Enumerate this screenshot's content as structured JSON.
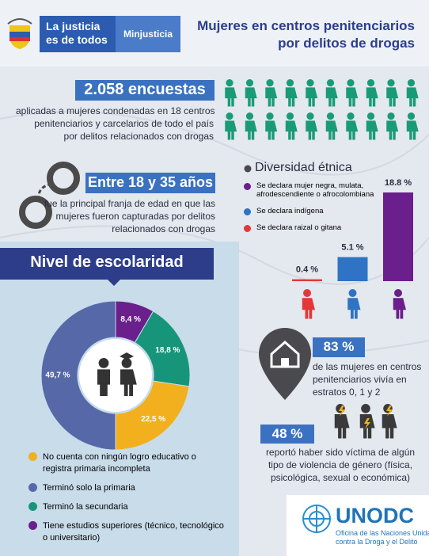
{
  "header": {
    "logo_line1": "La justicia",
    "logo_line2": "es de todos",
    "ministry": "Minjusticia",
    "title_line1": "Mujeres en centros penitenciarios",
    "title_line2": "por delitos de drogas"
  },
  "survey": {
    "headline": "2.058 encuestas",
    "text_lines": [
      "aplicadas a mujeres condenadas en 18 centros",
      "penitenciarios y carcelarios de todo el país",
      "por delitos relacionados con drogas"
    ]
  },
  "age": {
    "headline": "Entre 18 y 35 años",
    "text_lines": [
      "fue la principal franja de edad en que las",
      "mujeres fueron capturadas por delitos",
      "relacionados con drogas"
    ]
  },
  "chart_data": [
    {
      "type": "bar",
      "title": "Diversidad étnica",
      "categories": [
        "Se declara mujer negra, mulata, afrodescendiente o afrocolombiana",
        "Se declara indígena",
        "Se declara raizal o gitana"
      ],
      "values": [
        18.8,
        5.1,
        0.4
      ],
      "value_labels": [
        "18.8 %",
        "5.1 %",
        "0.4 %"
      ],
      "colors": [
        "#6a1f8c",
        "#2f73c4",
        "#e2383a"
      ]
    },
    {
      "type": "donut",
      "title": "Nivel de escolaridad",
      "categories": [
        "No cuenta con ningún logro educativo o registra primaria incompleta",
        "Terminó solo la primaria",
        "Terminó la secundaria",
        "Tiene estudios superiores (técnico, tecnológico o universitario)"
      ],
      "values": [
        22.5,
        49.7,
        18.8,
        8.4
      ],
      "value_labels": [
        "22,5 %",
        "49,7 %",
        "18,8 %",
        "8,4 %"
      ],
      "colors": [
        "#f2b01e",
        "#5668a8",
        "#17957a",
        "#6a1f8c"
      ]
    }
  ],
  "housing": {
    "headline": "83 %",
    "text_lines": [
      "de las mujeres en centros",
      "penitenciarios vivía en",
      "estratos 0, 1 y 2"
    ]
  },
  "violence": {
    "headline": "48 %",
    "text_lines": [
      "reportó haber sido víctima de algún",
      "tipo de violencia de género (física,",
      "psicológica, sexual o económica)"
    ]
  },
  "footer": {
    "brand": "UNODC",
    "subtitle_line1": "Oficina de las Naciones Unidas",
    "subtitle_line2": "contra la Droga y el Delito"
  }
}
